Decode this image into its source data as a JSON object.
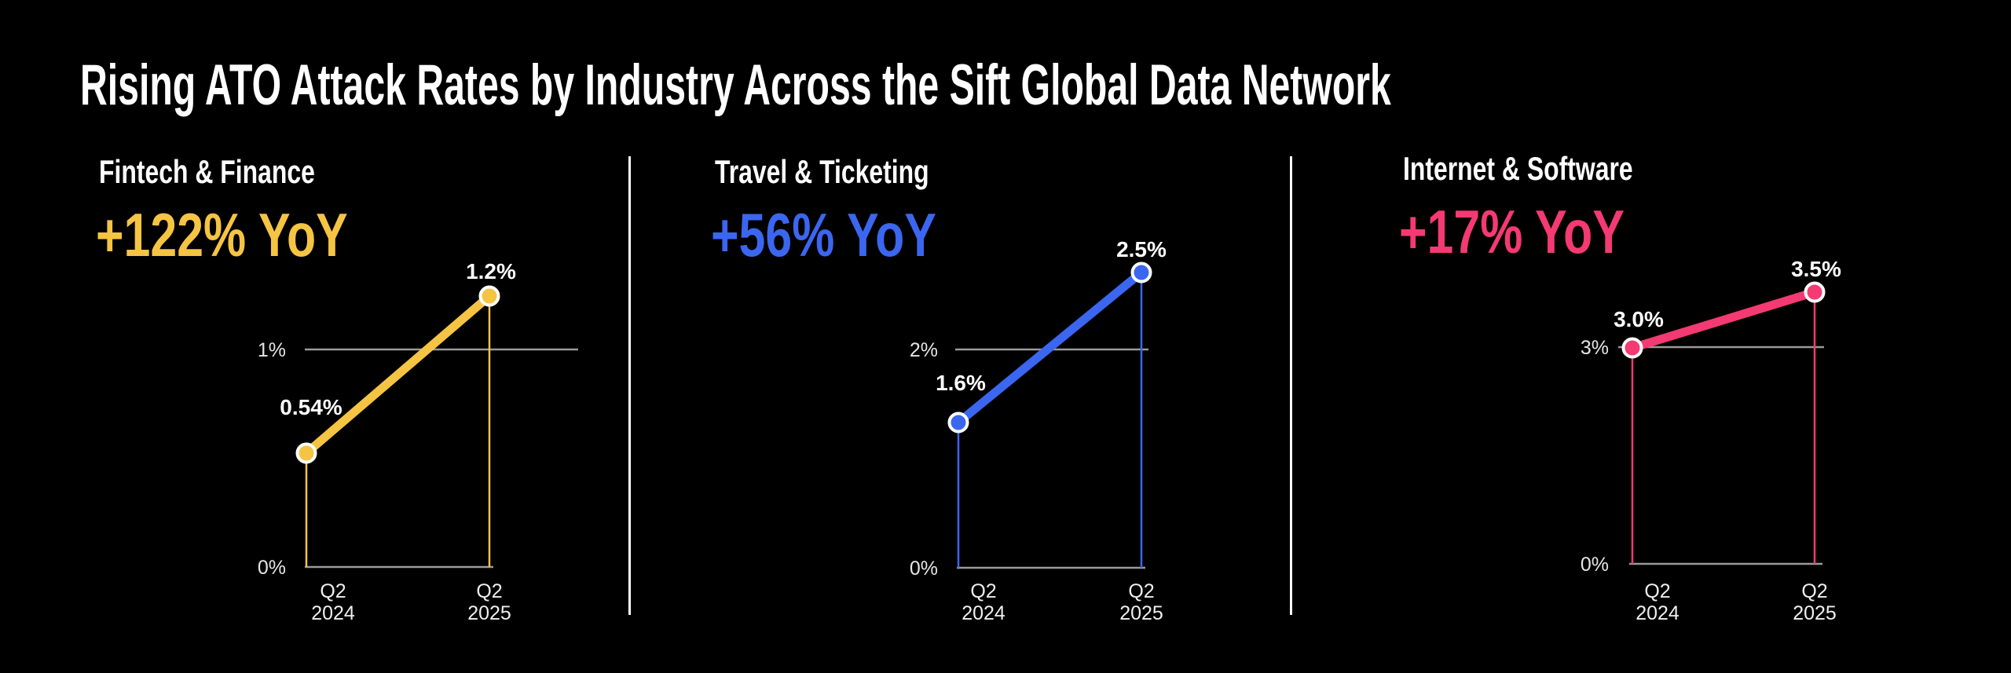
{
  "title": "Rising ATO Attack Rates by Industry Across the Sift Global Data Network",
  "background": "#000000",
  "chart_data": [
    {
      "type": "line",
      "title": "Fintech & Finance",
      "annotation": "+122% YoY",
      "series_color": "#F5C443",
      "categories": [
        "Q2 2024",
        "Q2 2025"
      ],
      "category_lines": [
        [
          "Q2",
          "2024"
        ],
        [
          "Q2",
          "2025"
        ]
      ],
      "values": [
        0.54,
        1.2
      ],
      "value_labels": [
        "0.54%",
        "1.2%"
      ],
      "y_ticks": [
        {
          "value": 0,
          "label": "0%"
        },
        {
          "value": 1,
          "label": "1%"
        }
      ],
      "ylim": [
        0,
        1.3
      ],
      "grid": "single horizontal gridline at 1%",
      "legend": "none"
    },
    {
      "type": "line",
      "title": "Travel & Ticketing",
      "annotation": "+56% YoY",
      "series_color": "#3B66F0",
      "categories": [
        "Q2 2024",
        "Q2 2025"
      ],
      "category_lines": [
        [
          "Q2",
          "2024"
        ],
        [
          "Q2",
          "2025"
        ]
      ],
      "values": [
        1.6,
        2.5
      ],
      "value_labels": [
        "1.6%",
        "2.5%"
      ],
      "y_ticks": [
        {
          "value": 0,
          "label": "0%"
        },
        {
          "value": 2,
          "label": "2%"
        }
      ],
      "ylim": [
        0,
        2.8
      ],
      "grid": "single horizontal gridline at 2%",
      "legend": "none"
    },
    {
      "type": "line",
      "title": "Internet & Software",
      "annotation": "+17% YoY",
      "series_color": "#F43A72",
      "categories": [
        "Q2 2024",
        "Q2 2025"
      ],
      "category_lines": [
        [
          "Q2",
          "2024"
        ],
        [
          "Q2",
          "2025"
        ]
      ],
      "values": [
        3.0,
        3.5
      ],
      "value_labels": [
        "3.0%",
        "3.5%"
      ],
      "y_ticks": [
        {
          "value": 0,
          "label": "0%"
        },
        {
          "value": 3,
          "label": "3%"
        }
      ],
      "ylim": [
        0,
        3.8
      ],
      "grid": "single horizontal gridline at 3%",
      "legend": "none"
    }
  ]
}
